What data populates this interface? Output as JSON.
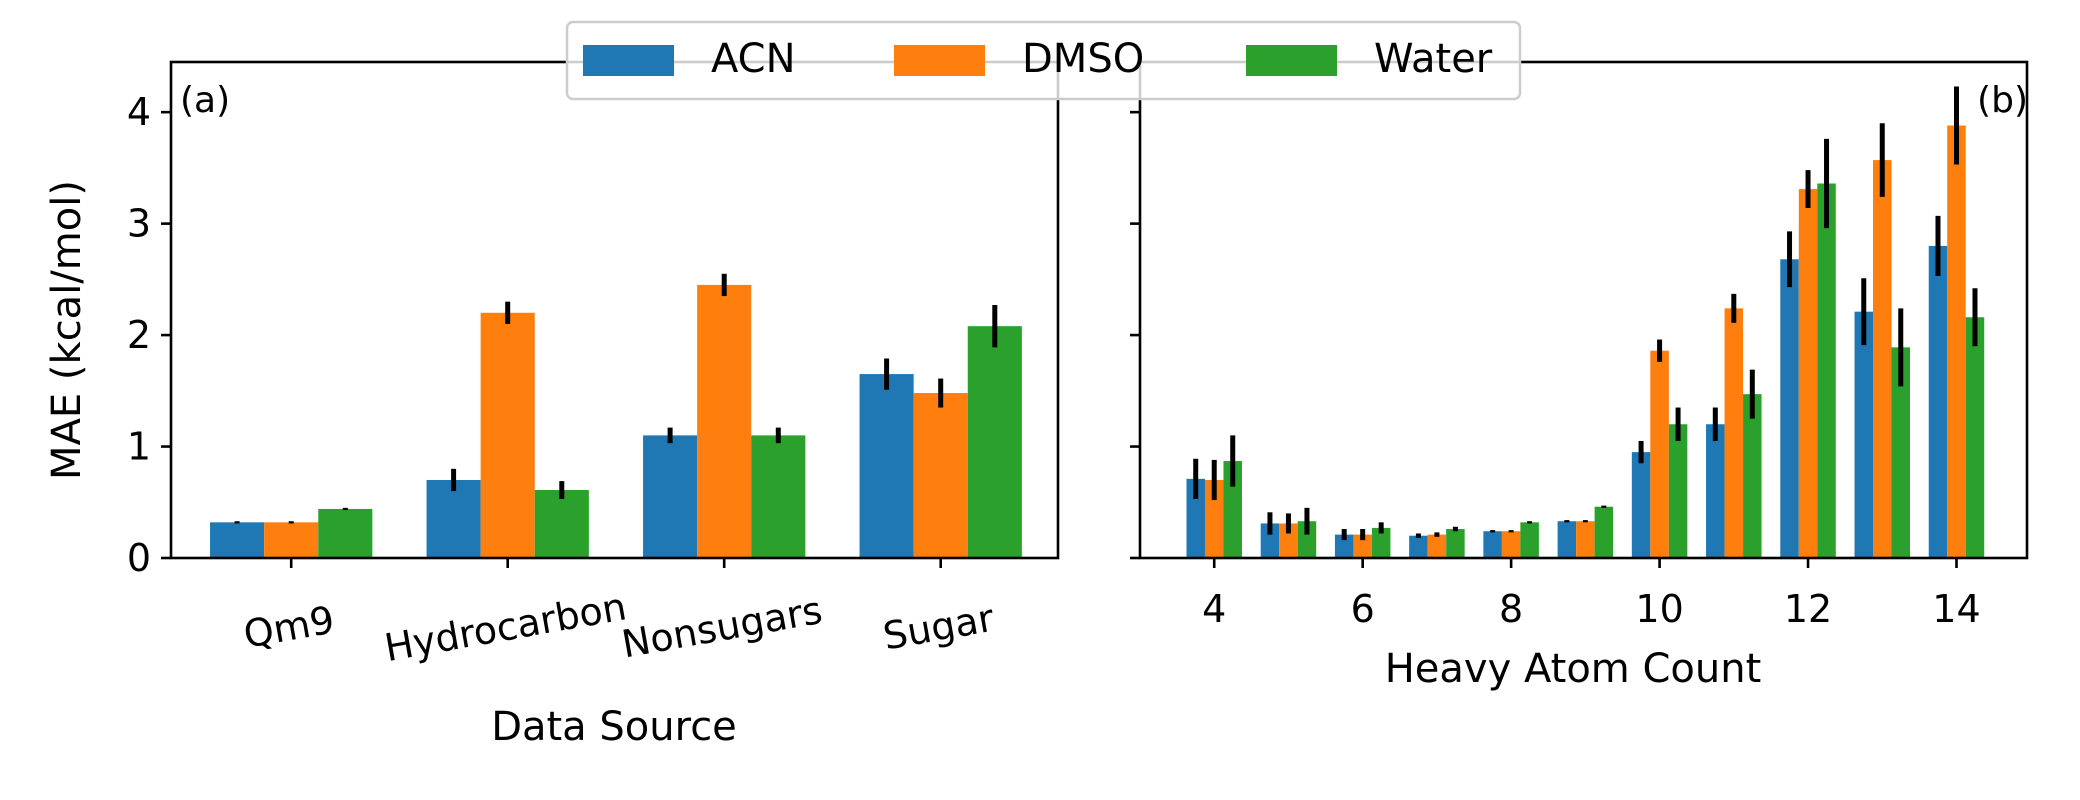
{
  "legend": [
    "ACN",
    "DMSO",
    "Water"
  ],
  "colors": {
    "ACN": "#1f77b4",
    "DMSO": "#ff7f0e",
    "Water": "#2ca02c"
  },
  "chart_data": [
    {
      "type": "bar",
      "panel_label": "(a)",
      "xlabel": "Data Source",
      "ylabel": "MAE (kcal/mol)",
      "ylim": [
        0,
        4.45
      ],
      "yticks": [
        0,
        1,
        2,
        3,
        4
      ],
      "categories": [
        "Qm9",
        "Hydrocarbon",
        "Nonsugars",
        "Sugar"
      ],
      "series": [
        {
          "name": "ACN",
          "values": [
            0.32,
            0.7,
            1.1,
            1.65
          ],
          "errors": [
            0.01,
            0.1,
            0.07,
            0.14
          ]
        },
        {
          "name": "DMSO",
          "values": [
            0.32,
            2.2,
            2.45,
            1.48
          ],
          "errors": [
            0.01,
            0.1,
            0.1,
            0.13
          ]
        },
        {
          "name": "Water",
          "values": [
            0.44,
            0.61,
            1.1,
            2.08
          ],
          "errors": [
            0.01,
            0.08,
            0.07,
            0.19
          ]
        }
      ]
    },
    {
      "type": "bar",
      "panel_label": "(b)",
      "xlabel": "Heavy Atom Count",
      "ylabel": "",
      "ylim": [
        0,
        4.45
      ],
      "yticks": [
        0,
        1,
        2,
        3,
        4
      ],
      "xlim": [
        3.0,
        14.95
      ],
      "xticks": [
        4,
        6,
        8,
        10,
        12,
        14
      ],
      "x": [
        4,
        5,
        6,
        7,
        8,
        9,
        10,
        11,
        12,
        13,
        14
      ],
      "series": [
        {
          "name": "ACN",
          "values": [
            0.71,
            0.31,
            0.21,
            0.2,
            0.24,
            0.33,
            0.95,
            1.2,
            2.68,
            2.21,
            2.8
          ],
          "errors": [
            0.18,
            0.1,
            0.05,
            0.02,
            0.01,
            0.01,
            0.1,
            0.15,
            0.25,
            0.3,
            0.27
          ]
        },
        {
          "name": "DMSO",
          "values": [
            0.7,
            0.31,
            0.21,
            0.21,
            0.24,
            0.33,
            1.86,
            2.24,
            3.31,
            3.57,
            3.88
          ],
          "errors": [
            0.18,
            0.09,
            0.05,
            0.02,
            0.01,
            0.01,
            0.1,
            0.13,
            0.17,
            0.33,
            0.35
          ]
        },
        {
          "name": "Water",
          "values": [
            0.87,
            0.33,
            0.27,
            0.26,
            0.32,
            0.46,
            1.2,
            1.47,
            3.36,
            1.89,
            2.16
          ],
          "errors": [
            0.23,
            0.12,
            0.05,
            0.02,
            0.01,
            0.01,
            0.15,
            0.22,
            0.4,
            0.35,
            0.26
          ]
        }
      ]
    }
  ]
}
